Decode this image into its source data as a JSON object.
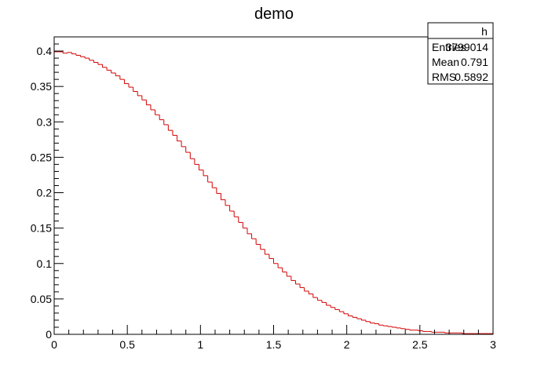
{
  "chart_data": {
    "type": "histogram",
    "title": "demo",
    "xlabel": "",
    "ylabel": "",
    "xlim": [
      0,
      3
    ],
    "ylim": [
      0,
      0.42
    ],
    "line_color": "#d40000",
    "x_ticks": [
      {
        "value": 0,
        "label": "0"
      },
      {
        "value": 0.5,
        "label": "0.5"
      },
      {
        "value": 1,
        "label": "1"
      },
      {
        "value": 1.5,
        "label": "1.5"
      },
      {
        "value": 2,
        "label": "2"
      },
      {
        "value": 2.5,
        "label": "2.5"
      },
      {
        "value": 3,
        "label": "3"
      }
    ],
    "y_ticks": [
      {
        "value": 0,
        "label": "0"
      },
      {
        "value": 0.05,
        "label": "0.05"
      },
      {
        "value": 0.1,
        "label": "0.1"
      },
      {
        "value": 0.15,
        "label": "0.15"
      },
      {
        "value": 0.2,
        "label": "0.2"
      },
      {
        "value": 0.25,
        "label": "0.25"
      },
      {
        "value": 0.3,
        "label": "0.3"
      },
      {
        "value": 0.35,
        "label": "0.35"
      },
      {
        "value": 0.4,
        "label": "0.4"
      }
    ],
    "bin_width": 0.03,
    "bin_values": [
      0.399,
      0.399,
      0.397,
      0.398,
      0.396,
      0.394,
      0.392,
      0.39,
      0.387,
      0.384,
      0.381,
      0.377,
      0.373,
      0.369,
      0.365,
      0.36,
      0.354,
      0.349,
      0.343,
      0.337,
      0.331,
      0.324,
      0.317,
      0.31,
      0.303,
      0.296,
      0.288,
      0.281,
      0.273,
      0.265,
      0.257,
      0.248,
      0.24,
      0.232,
      0.224,
      0.215,
      0.207,
      0.199,
      0.19,
      0.182,
      0.174,
      0.166,
      0.158,
      0.15,
      0.142,
      0.135,
      0.127,
      0.12,
      0.113,
      0.107,
      0.1,
      0.094,
      0.088,
      0.082,
      0.076,
      0.071,
      0.066,
      0.061,
      0.057,
      0.052,
      0.048,
      0.045,
      0.041,
      0.038,
      0.035,
      0.032,
      0.029,
      0.026,
      0.024,
      0.022,
      0.02,
      0.018,
      0.016,
      0.015,
      0.013,
      0.012,
      0.011,
      0.01,
      0.009,
      0.008,
      0.007,
      0.006,
      0.006,
      0.005,
      0.004,
      0.004,
      0.003,
      0.003,
      0.003,
      0.002,
      0.002,
      0.002,
      0.002,
      0.001,
      0.001,
      0.001,
      0.001,
      0.001,
      0.001,
      0.001
    ],
    "stats_box": {
      "name": "h",
      "rows": [
        {
          "label": "Entries",
          "value": "3799014"
        },
        {
          "label": "Mean",
          "value": "0.791"
        },
        {
          "label": "RMS",
          "value": "0.5892"
        }
      ]
    }
  }
}
